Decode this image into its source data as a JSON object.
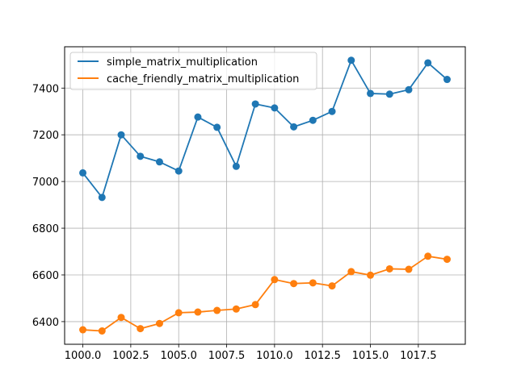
{
  "chart_data": {
    "type": "line",
    "title": "",
    "xlabel": "",
    "ylabel": "",
    "x": [
      1000,
      1001,
      1002,
      1003,
      1004,
      1005,
      1006,
      1007,
      1008,
      1009,
      1010,
      1011,
      1012,
      1013,
      1014,
      1015,
      1016,
      1017,
      1018,
      1019
    ],
    "series": [
      {
        "name": "simple_matrix_multiplication",
        "color": "#1f77b4",
        "values": [
          7037,
          6932,
          7200,
          7108,
          7084,
          7045,
          7276,
          7232,
          7065,
          7332,
          7315,
          7234,
          7262,
          7300,
          7519,
          7377,
          7374,
          7393,
          7508,
          7437
        ]
      },
      {
        "name": "cache_friendly_matrix_multiplication",
        "color": "#ff7f0e",
        "values": [
          6365,
          6360,
          6418,
          6370,
          6392,
          6438,
          6441,
          6448,
          6454,
          6473,
          6580,
          6563,
          6566,
          6553,
          6614,
          6599,
          6626,
          6624,
          6680,
          6667
        ]
      }
    ],
    "xlim": [
      999.05,
      1019.95
    ],
    "ylim": [
      6303.05,
      7576.95
    ],
    "xticks": [
      "1000.0",
      "1002.5",
      "1005.0",
      "1007.5",
      "1010.0",
      "1012.5",
      "1015.0",
      "1017.5"
    ],
    "yticks": [
      "6400",
      "6600",
      "6800",
      "7000",
      "7200",
      "7400"
    ],
    "grid": true,
    "legend_position": "upper-left"
  }
}
